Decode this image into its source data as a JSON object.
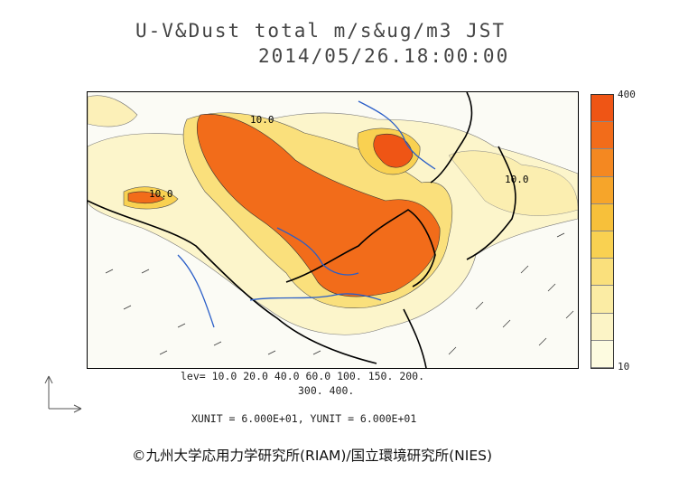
{
  "title": {
    "line1": "U-V&Dust total m/s&ug/m3 JST",
    "line2": "2014/05/26.18:00:00"
  },
  "colorbar": {
    "max_label": "400",
    "min_label": "10",
    "colors": [
      "#fdfbe0",
      "#fcf4c6",
      "#fbeca4",
      "#fae07c",
      "#f9d151",
      "#f7c03a",
      "#f6a52a",
      "#f48821",
      "#f26c1a",
      "#ef5515"
    ]
  },
  "levels": {
    "line1": "lev= 10.0 20.0 40.0 60.0 100. 150. 200.",
    "line2": "300. 400."
  },
  "units": "XUNIT = 6.000E+01, YUNIT = 6.000E+01",
  "map_labels": {
    "label_a": "10.0",
    "label_b": "10.0",
    "label_c": "10.0"
  },
  "copyright": "©九州大学応用力学研究所(RIAM)/国立環境研究所(NIES)"
}
